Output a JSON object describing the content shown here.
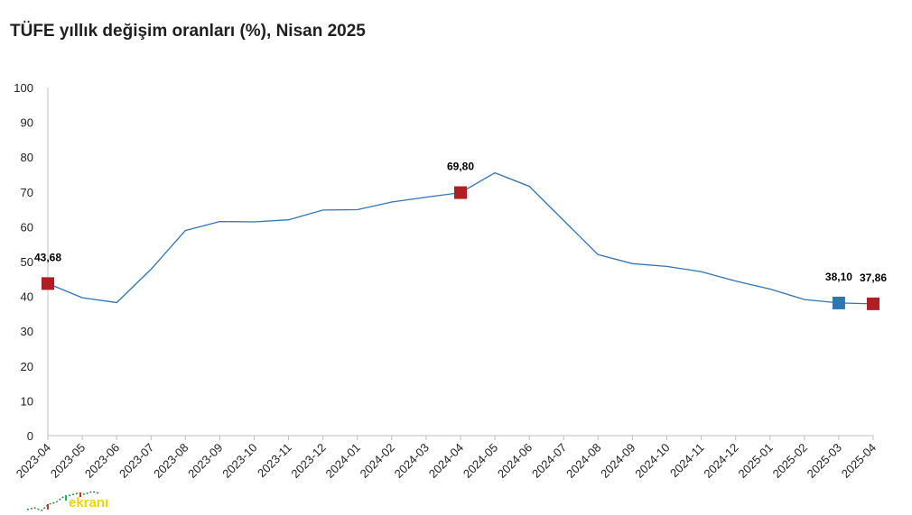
{
  "title": "TÜFE yıllık değişim oranları (%), Nisan 2025",
  "watermark": "ekranı",
  "colors": {
    "line": "#2e75b6",
    "marker_red": "#b01e24",
    "marker_blue": "#2e75b6",
    "axis": "#bfbfbf",
    "watermark": "#f2d500"
  },
  "chart_data": {
    "type": "line",
    "title": "TÜFE yıllık değişim oranları (%), Nisan 2025",
    "xlabel": "",
    "ylabel": "",
    "ylim": [
      0,
      100
    ],
    "yticks": [
      0,
      10,
      20,
      30,
      40,
      50,
      60,
      70,
      80,
      90,
      100
    ],
    "grid": false,
    "categories": [
      "2023-04",
      "2023-05",
      "2023-06",
      "2023-07",
      "2023-08",
      "2023-09",
      "2023-10",
      "2023-11",
      "2023-12",
      "2024-01",
      "2024-02",
      "2024-03",
      "2024-04",
      "2024-05",
      "2024-06",
      "2024-07",
      "2024-08",
      "2024-09",
      "2024-10",
      "2024-11",
      "2024-12",
      "2025-01",
      "2025-02",
      "2025-03",
      "2025-04"
    ],
    "series": [
      {
        "values": [
          43.68,
          39.6,
          38.2,
          47.8,
          58.9,
          61.5,
          61.4,
          62.0,
          64.8,
          64.9,
          67.1,
          68.5,
          69.8,
          75.5,
          71.6,
          61.8,
          52.0,
          49.4,
          48.6,
          47.1,
          44.4,
          42.1,
          39.1,
          38.1,
          37.86
        ]
      }
    ],
    "markers": [
      {
        "index": 0,
        "label": "43,68",
        "color": "red"
      },
      {
        "index": 12,
        "label": "69,80",
        "color": "red"
      },
      {
        "index": 23,
        "label": "38,10",
        "color": "blue"
      },
      {
        "index": 24,
        "label": "37,86",
        "color": "red"
      }
    ]
  }
}
